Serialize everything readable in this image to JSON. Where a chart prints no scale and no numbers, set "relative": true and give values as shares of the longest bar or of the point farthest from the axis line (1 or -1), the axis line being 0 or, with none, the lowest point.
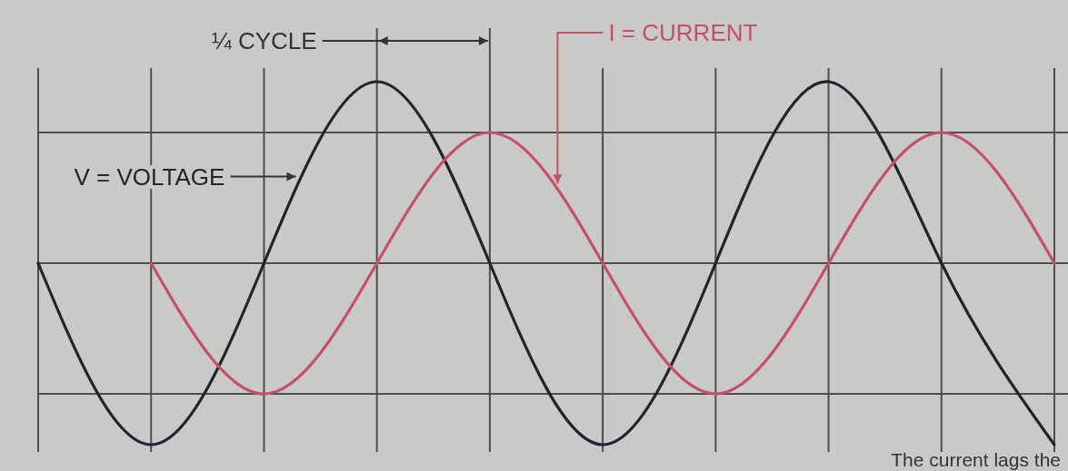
{
  "chart_data": {
    "type": "line",
    "relative": true,
    "categories": [
      null,
      null,
      null,
      null,
      null,
      null,
      null,
      null,
      null,
      null
    ],
    "grid": "x",
    "series": [
      {
        "name": "V = VOLTAGE",
        "color": "#23232f",
        "values": [
          0,
          -1,
          0,
          1,
          0,
          -1,
          0,
          1,
          0,
          -1
        ]
      },
      {
        "name": "I = CURRENT",
        "color": "#c4506a",
        "values": [
          null,
          0,
          -0.72,
          0,
          0.72,
          0,
          -0.72,
          0,
          0.72,
          0
        ]
      }
    ],
    "ref_lines": [
      {
        "axis": "y",
        "value": 0.72,
        "color": "#4d4d4d"
      },
      {
        "axis": "y",
        "value": -0.72,
        "color": "#4d4d4d"
      }
    ],
    "annotations": [
      "¼ CYCLE",
      "The current lags the"
    ]
  }
}
